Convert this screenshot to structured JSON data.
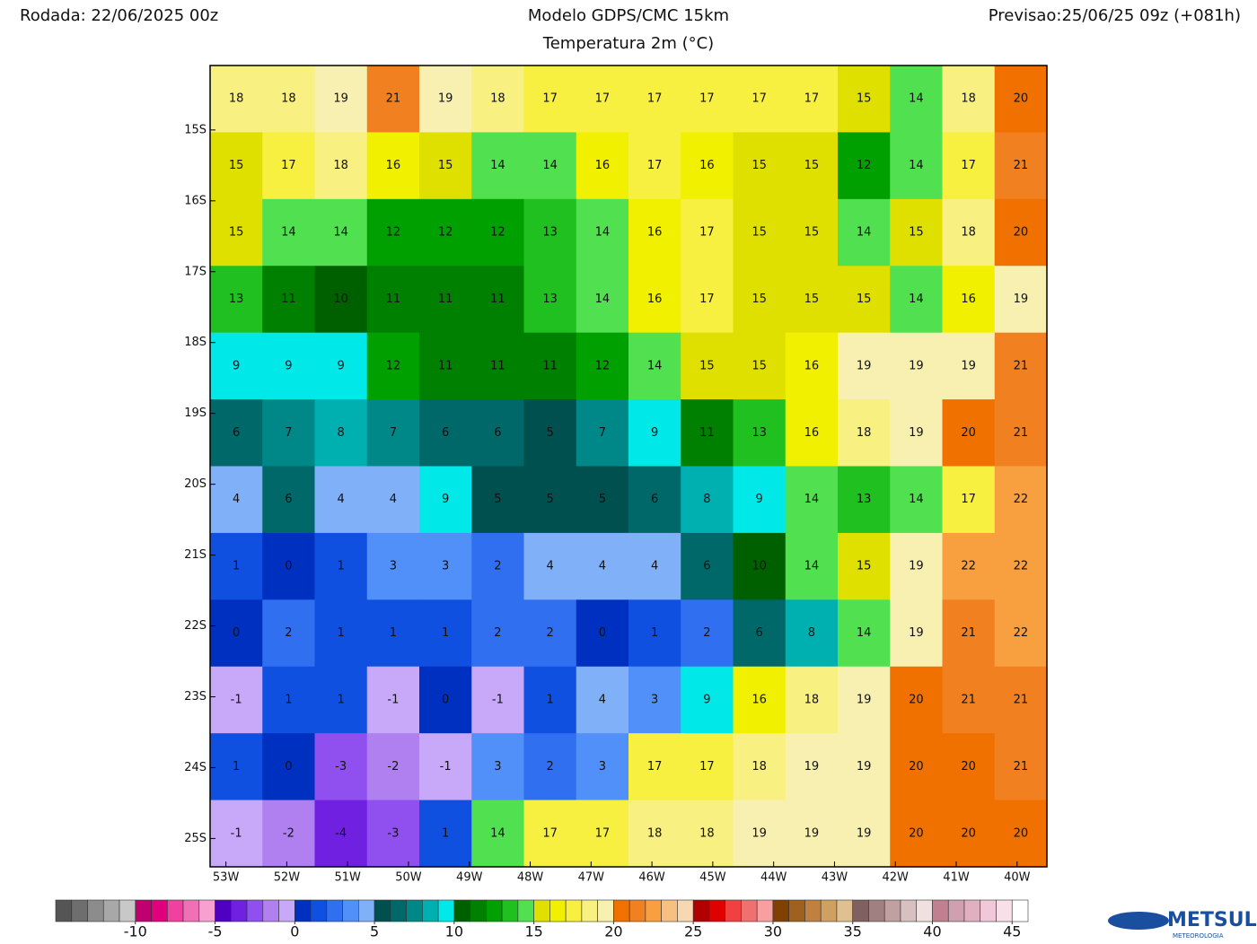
{
  "chart_data": {
    "type": "heatmap",
    "header_left": "Rodada: 22/06/2025 00z",
    "title": "Modelo GDPS/CMC 15km",
    "subtitle": "Temperatura 2m (°C)",
    "header_right": "Previsao:25/06/25 09z (+081h)",
    "logo": "METSUL",
    "logo_sub": "METEOROLOGIA",
    "xlim": [
      -53.26,
      -39.51
    ],
    "ylim": [
      -25.4,
      -14.09
    ],
    "xticks": [
      {
        "value": -53,
        "label": "53W"
      },
      {
        "value": -52,
        "label": "52W"
      },
      {
        "value": -51,
        "label": "51W"
      },
      {
        "value": -50,
        "label": "50W"
      },
      {
        "value": -49,
        "label": "49W"
      },
      {
        "value": -48,
        "label": "48W"
      },
      {
        "value": -47,
        "label": "47W"
      },
      {
        "value": -46,
        "label": "46W"
      },
      {
        "value": -45,
        "label": "45W"
      },
      {
        "value": -44,
        "label": "44W"
      },
      {
        "value": -43,
        "label": "43W"
      },
      {
        "value": -42,
        "label": "42W"
      },
      {
        "value": -41,
        "label": "41W"
      },
      {
        "value": -40,
        "label": "40W"
      }
    ],
    "yticks": [
      {
        "value": -15,
        "label": "15S"
      },
      {
        "value": -16,
        "label": "16S"
      },
      {
        "value": -17,
        "label": "17S"
      },
      {
        "value": -18,
        "label": "18S"
      },
      {
        "value": -19,
        "label": "19S"
      },
      {
        "value": -20,
        "label": "20S"
      },
      {
        "value": -21,
        "label": "21S"
      },
      {
        "value": -22,
        "label": "22S"
      },
      {
        "value": -23,
        "label": "23S"
      },
      {
        "value": -24,
        "label": "24S"
      },
      {
        "value": -25,
        "label": "25S"
      }
    ],
    "values": [
      [
        18,
        18,
        19,
        21,
        19,
        18,
        17,
        17,
        17,
        17,
        17,
        17,
        15,
        14,
        18,
        20
      ],
      [
        15,
        17,
        18,
        16,
        15,
        14,
        14,
        16,
        17,
        16,
        15,
        15,
        12,
        14,
        17,
        21
      ],
      [
        15,
        14,
        14,
        12,
        12,
        12,
        13,
        14,
        16,
        17,
        15,
        15,
        14,
        15,
        18,
        20
      ],
      [
        13,
        11,
        10,
        11,
        11,
        11,
        13,
        14,
        16,
        17,
        15,
        15,
        15,
        14,
        16,
        19
      ],
      [
        9,
        9,
        9,
        12,
        11,
        11,
        11,
        12,
        14,
        15,
        15,
        16,
        19,
        19,
        19,
        21
      ],
      [
        6,
        7,
        8,
        7,
        6,
        6,
        5,
        7,
        9,
        11,
        13,
        16,
        18,
        19,
        20,
        21
      ],
      [
        4,
        6,
        4,
        4,
        9,
        5,
        5,
        5,
        6,
        8,
        9,
        14,
        13,
        14,
        17,
        22
      ],
      [
        1,
        0,
        1,
        3,
        3,
        2,
        4,
        4,
        4,
        6,
        10,
        14,
        15,
        19,
        22,
        22
      ],
      [
        0,
        2,
        1,
        1,
        1,
        2,
        2,
        0,
        1,
        2,
        6,
        8,
        14,
        19,
        21,
        22
      ],
      [
        -1,
        1,
        1,
        -1,
        0,
        -1,
        1,
        4,
        3,
        9,
        16,
        18,
        19,
        20,
        21,
        21
      ],
      [
        1,
        0,
        -3,
        -2,
        -1,
        3,
        2,
        3,
        17,
        17,
        18,
        19,
        19,
        20,
        20,
        21
      ],
      [
        -1,
        -2,
        -4,
        -3,
        1,
        14,
        17,
        17,
        18,
        18,
        19,
        19,
        19,
        20,
        20,
        20
      ]
    ],
    "colorbar": {
      "min": -15,
      "max": 46,
      "ticks": [
        -10,
        -5,
        0,
        5,
        10,
        15,
        20,
        25,
        30,
        35,
        40,
        45
      ],
      "colors": [
        "#555555",
        "#6e6e6e",
        "#8c8c8c",
        "#a8a8a8",
        "#c8c8c8",
        "#c0006e",
        "#e0007e",
        "#f040a0",
        "#f070b8",
        "#f8a0d0",
        "#5000c0",
        "#7020e0",
        "#9050f0",
        "#b080f0",
        "#c8a8f8",
        "#0030c0",
        "#1050e0",
        "#3070f0",
        "#5090f8",
        "#80b0f8",
        "#005050",
        "#006868",
        "#008888",
        "#00b0b0",
        "#00e8e8",
        "#006000",
        "#008000",
        "#00a000",
        "#20c020",
        "#50e050",
        "#e0e000",
        "#f0f000",
        "#f8f040",
        "#f8f080",
        "#f8f0b0",
        "#f07000",
        "#f08020",
        "#f8a040",
        "#f8c080",
        "#f8d8b0",
        "#b00000",
        "#e00000",
        "#f04040",
        "#f07070",
        "#f8a0a0",
        "#804000",
        "#a06020",
        "#c08040",
        "#d0a060",
        "#e0c090",
        "#806060",
        "#a08080",
        "#c0a0a0",
        "#d8c0c0",
        "#f0e0e0",
        "#c08090",
        "#d0a0b0",
        "#e0b0c0",
        "#f0c8d8",
        "#f8e0e8",
        "#ffffff"
      ]
    }
  }
}
